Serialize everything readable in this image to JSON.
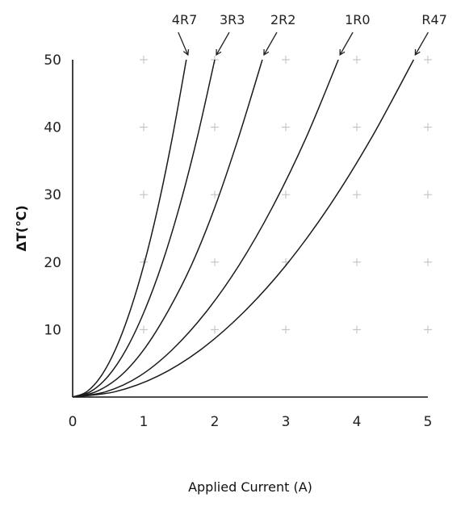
{
  "chart_data": {
    "type": "line",
    "title": "",
    "xlabel": "Applied Current (A)",
    "ylabel": "ΔT(℃)",
    "xlim": [
      0,
      5
    ],
    "ylim": [
      0,
      50
    ],
    "x_ticks": [
      "0",
      "1",
      "2",
      "3",
      "4",
      "5"
    ],
    "y_ticks": [
      "10",
      "20",
      "30",
      "40",
      "50"
    ],
    "grid": "plus markers",
    "legend": "none (series labels with arrows above plot)",
    "series": [
      {
        "name": "4R7",
        "x": [
          0,
          0.2,
          0.4,
          0.6,
          0.8,
          1.0,
          1.2,
          1.4,
          1.6
        ],
        "y": [
          0,
          0.8,
          3.1,
          7.0,
          12.5,
          19.5,
          28.1,
          38.3,
          50.0
        ]
      },
      {
        "name": "3R3",
        "x": [
          0,
          0.25,
          0.5,
          0.75,
          1.0,
          1.25,
          1.5,
          1.75,
          2.0
        ],
        "y": [
          0,
          0.8,
          3.1,
          7.0,
          12.5,
          19.5,
          28.1,
          38.3,
          50.0
        ]
      },
      {
        "name": "2R2",
        "x": [
          0,
          0.33,
          0.67,
          1.0,
          1.33,
          1.67,
          2.0,
          2.33,
          2.67
        ],
        "y": [
          0,
          0.8,
          3.1,
          7.0,
          12.5,
          19.5,
          28.1,
          38.3,
          50.0
        ]
      },
      {
        "name": "1R0",
        "x": [
          0,
          0.47,
          0.94,
          1.4,
          1.87,
          2.34,
          2.81,
          3.28,
          3.74
        ],
        "y": [
          0,
          0.8,
          3.1,
          7.0,
          12.5,
          19.5,
          28.1,
          38.3,
          50.0
        ]
      },
      {
        "name": "R47",
        "x": [
          0,
          0.6,
          1.2,
          1.8,
          2.4,
          3.0,
          3.6,
          4.2,
          4.8
        ],
        "y": [
          0,
          0.8,
          3.1,
          7.0,
          12.5,
          19.5,
          28.1,
          38.3,
          50.0
        ]
      }
    ]
  }
}
